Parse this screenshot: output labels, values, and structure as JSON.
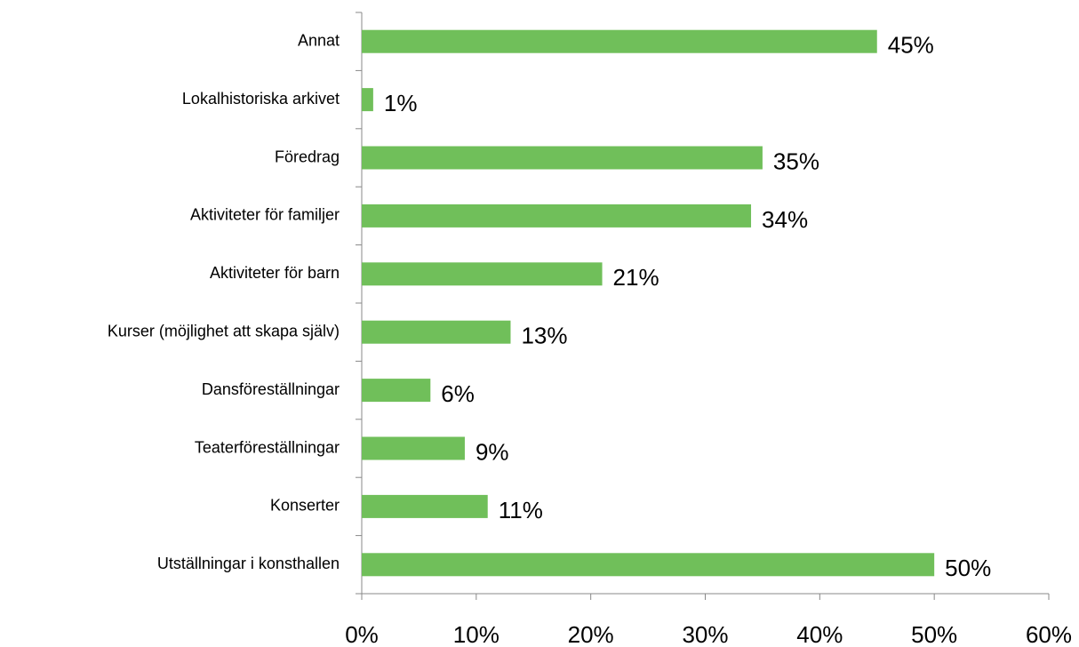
{
  "chart_data": {
    "type": "barh",
    "categories": [
      "Annat",
      "Lokalhistoriska arkivet",
      "Föredrag",
      "Aktiviteter för familjer",
      "Aktiviteter för barn",
      "Kurser (möjlighet att skapa själv)",
      "Dansföreställningar",
      "Teaterföreställningar",
      "Konserter",
      "Utställningar i konsthallen"
    ],
    "values": [
      45,
      1,
      35,
      34,
      21,
      13,
      6,
      9,
      11,
      50
    ],
    "value_labels": [
      "45%",
      "1%",
      "35%",
      "34%",
      "21%",
      "13%",
      "6%",
      "9%",
      "11%",
      "50%"
    ],
    "color": "#70bf5a",
    "xlim": [
      0,
      60
    ],
    "xticks": [
      {
        "value": 0,
        "label": "0%"
      },
      {
        "value": 10,
        "label": "10%"
      },
      {
        "value": 20,
        "label": "20%"
      },
      {
        "value": 30,
        "label": "30%"
      },
      {
        "value": 40,
        "label": "40%"
      },
      {
        "value": 50,
        "label": "50%"
      },
      {
        "value": 60,
        "label": "60%"
      }
    ],
    "grid": false
  }
}
